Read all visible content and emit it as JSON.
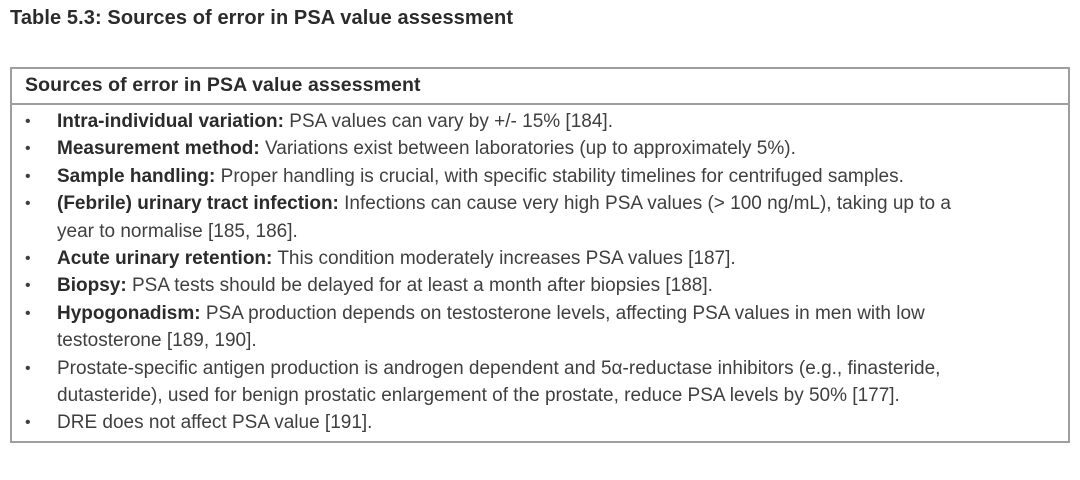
{
  "page": {
    "title": "Table 5.3: Sources of error in PSA value assessment"
  },
  "table": {
    "header": "Sources of error in PSA value assessment",
    "bullet": "•",
    "items": [
      {
        "label": "Intra-individual variation:",
        "text": "PSA values can vary by +/- 15% [184]."
      },
      {
        "label": "Measurement method:",
        "text": "Variations exist between laboratories (up to approximately 5%)."
      },
      {
        "label": "Sample handling:",
        "text": "Proper handling is crucial, with specific stability timelines for centrifuged samples."
      },
      {
        "label": "(Febrile) urinary tract infection:",
        "text": "Infections can cause very high PSA values (> 100 ng/mL), taking up to a\nyear to normalise [185, 186]."
      },
      {
        "label": "Acute urinary retention:",
        "text": "This condition moderately increases PSA values [187]."
      },
      {
        "label": "Biopsy:",
        "text": "PSA tests should be delayed for at least a month after biopsies [188]."
      },
      {
        "label": "Hypogonadism:",
        "text": "PSA production depends on testosterone levels, affecting PSA values in men with low\ntestosterone [189, 190]."
      },
      {
        "label": "",
        "text": "Prostate-specific antigen production is androgen dependent and 5α-reductase inhibitors (e.g., finasteride,\ndutasteride), used for benign prostatic enlargement of the prostate, reduce PSA levels by 50% [177]."
      },
      {
        "label": "",
        "text": "DRE does not affect PSA value [191]."
      }
    ]
  },
  "colors": {
    "border": "#9e9e9e",
    "text": "#3f3f3f",
    "bold_text": "#2b2b2b",
    "background": "#ffffff"
  }
}
